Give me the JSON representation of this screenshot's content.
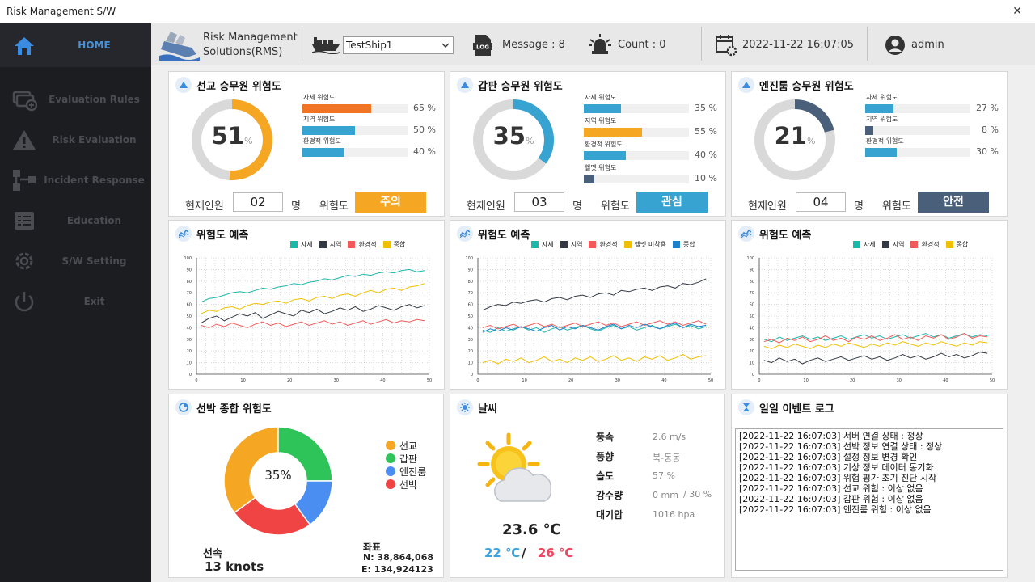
{
  "window": {
    "title": "Risk Management S/W",
    "close": "✕"
  },
  "sidebar": {
    "items": [
      {
        "label": "HOME",
        "icon": "home-icon"
      },
      {
        "label": "Evaluation Rules",
        "icon": "rules-icon"
      },
      {
        "label": "Risk Evaluation",
        "icon": "warning-icon"
      },
      {
        "label": "Incident Response",
        "icon": "network-icon"
      },
      {
        "label": "Education",
        "icon": "list-icon"
      },
      {
        "label": "S/W Setting",
        "icon": "gear-icon"
      },
      {
        "label": "Exit",
        "icon": "power-icon"
      }
    ]
  },
  "header": {
    "app_name_1": "Risk Management",
    "app_name_2": "Solutions(RMS)",
    "ship_select": "TestShip1",
    "message": "Message : 8",
    "count": "Count : 0",
    "datetime": "2022-11-22 16:07:05",
    "user": "admin"
  },
  "crew": [
    {
      "title": "선교 승무원 위험도",
      "value": 51,
      "unit": "%",
      "color": "#f5a623",
      "bars": [
        {
          "label": "자세 위험도",
          "pct": 65,
          "text": "65 %",
          "color": "#f07424"
        },
        {
          "label": "지역 위험도",
          "pct": 50,
          "text": "50 %",
          "color": "#36a3d0"
        },
        {
          "label": "환경적 위험도",
          "pct": 40,
          "text": "40 %",
          "color": "#36a3d0"
        }
      ],
      "count_label": "현재인원",
      "count": "02",
      "count_unit": "명",
      "risk_label": "위험도",
      "risk": "주의",
      "risk_color": "#f5a623"
    },
    {
      "title": "갑판 승무원 위험도",
      "value": 35,
      "unit": "%",
      "color": "#36a3d0",
      "bars": [
        {
          "label": "자세 위험도",
          "pct": 35,
          "text": "35 %",
          "color": "#36a3d0"
        },
        {
          "label": "지역 위험도",
          "pct": 55,
          "text": "55 %",
          "color": "#f5a623"
        },
        {
          "label": "환경적 위험도",
          "pct": 40,
          "text": "40 %",
          "color": "#36a3d0"
        },
        {
          "label": "헬멧 위험도",
          "pct": 10,
          "text": "10 %",
          "color": "#4a5f7a"
        }
      ],
      "count_label": "현재인원",
      "count": "03",
      "count_unit": "명",
      "risk_label": "위험도",
      "risk": "관심",
      "risk_color": "#36a3d0"
    },
    {
      "title": "엔진룸 승무원 위험도",
      "value": 21,
      "unit": "%",
      "color": "#4a5f7a",
      "bars": [
        {
          "label": "자세 위험도",
          "pct": 27,
          "text": "27 %",
          "color": "#36a3d0"
        },
        {
          "label": "지역 위험도",
          "pct": 8,
          "text": "8  %",
          "color": "#4a5f7a"
        },
        {
          "label": "환경적 위험도",
          "pct": 30,
          "text": "30 %",
          "color": "#36a3d0"
        }
      ],
      "count_label": "현재인원",
      "count": "04",
      "count_unit": "명",
      "risk_label": "위험도",
      "risk": "안전",
      "risk_color": "#4a5f7a"
    }
  ],
  "forecast_title": "위험도 예측",
  "chart_data": [
    {
      "type": "line",
      "title": "위험도 예측",
      "ylim": [
        0,
        100
      ],
      "xlim": [
        0,
        50
      ],
      "x_ticks": [
        0,
        10,
        20,
        30,
        40,
        50
      ],
      "y_ticks": [
        0,
        10,
        20,
        30,
        40,
        50,
        60,
        70,
        80,
        90,
        100
      ],
      "series": [
        {
          "name": "자세",
          "color": "#1bb7a8",
          "values": [
            62,
            65,
            66,
            68,
            70,
            71,
            70,
            72,
            74,
            73,
            75,
            76,
            78,
            77,
            79,
            80,
            82,
            81,
            83,
            85,
            84,
            86,
            85,
            87,
            88,
            87,
            89,
            90,
            88,
            89
          ]
        },
        {
          "name": "지역",
          "color": "#333a44",
          "values": [
            44,
            48,
            50,
            46,
            49,
            52,
            50,
            53,
            48,
            51,
            54,
            52,
            50,
            55,
            53,
            56,
            52,
            54,
            57,
            55,
            58,
            54,
            56,
            59,
            57,
            55,
            58,
            60,
            57,
            59
          ]
        },
        {
          "name": "환경적",
          "color": "#f05a5a",
          "values": [
            42,
            40,
            43,
            41,
            44,
            42,
            40,
            43,
            45,
            42,
            44,
            41,
            43,
            45,
            42,
            44,
            46,
            43,
            45,
            42,
            44,
            46,
            43,
            45,
            47,
            44,
            46,
            45,
            47,
            46
          ]
        },
        {
          "name": "종합",
          "color": "#f0c000",
          "values": [
            52,
            55,
            54,
            57,
            58,
            56,
            59,
            61,
            60,
            62,
            63,
            61,
            64,
            65,
            63,
            66,
            67,
            65,
            68,
            69,
            67,
            70,
            72,
            70,
            73,
            74,
            72,
            75,
            76,
            78
          ]
        }
      ]
    },
    {
      "type": "line",
      "title": "위험도 예측",
      "ylim": [
        0,
        100
      ],
      "xlim": [
        0,
        50
      ],
      "x_ticks": [
        0,
        10,
        20,
        30,
        40,
        50
      ],
      "y_ticks": [
        0,
        10,
        20,
        30,
        40,
        50,
        60,
        70,
        80,
        90,
        100
      ],
      "series": [
        {
          "name": "자세",
          "color": "#1bb7a8",
          "values": [
            38,
            36,
            40,
            37,
            39,
            41,
            38,
            40,
            36,
            39,
            41,
            38,
            40,
            42,
            39,
            37,
            40,
            42,
            39,
            41,
            38,
            40,
            42,
            39,
            41,
            43,
            40,
            42,
            39,
            41
          ]
        },
        {
          "name": "지역",
          "color": "#333a44",
          "values": [
            55,
            58,
            60,
            59,
            62,
            61,
            63,
            64,
            62,
            65,
            66,
            64,
            67,
            68,
            66,
            69,
            70,
            68,
            72,
            71,
            73,
            74,
            72,
            75,
            76,
            74,
            78,
            77,
            79,
            82
          ]
        },
        {
          "name": "환경적",
          "color": "#f05a5a",
          "values": [
            40,
            42,
            39,
            41,
            43,
            40,
            42,
            44,
            41,
            43,
            40,
            42,
            44,
            41,
            43,
            45,
            42,
            44,
            41,
            43,
            45,
            42,
            44,
            46,
            43,
            45,
            42,
            44,
            46,
            43
          ]
        },
        {
          "name": "헬멧 미착용",
          "color": "#f0c000",
          "values": [
            10,
            12,
            9,
            13,
            11,
            14,
            10,
            12,
            15,
            11,
            13,
            10,
            14,
            12,
            15,
            11,
            13,
            16,
            12,
            14,
            11,
            15,
            13,
            16,
            12,
            14,
            17,
            13,
            15,
            16
          ]
        },
        {
          "name": "종합",
          "color": "#1f7fc8",
          "values": [
            36,
            39,
            37,
            40,
            38,
            41,
            39,
            37,
            40,
            42,
            38,
            41,
            39,
            42,
            40,
            38,
            41,
            43,
            39,
            42,
            40,
            43,
            41,
            39,
            42,
            44,
            40,
            43,
            41,
            42
          ]
        }
      ]
    },
    {
      "type": "line",
      "title": "위험도 예측",
      "ylim": [
        0,
        100
      ],
      "xlim": [
        0,
        50
      ],
      "x_ticks": [
        0,
        10,
        20,
        30,
        40,
        50
      ],
      "y_ticks": [
        0,
        10,
        20,
        30,
        40,
        50,
        60,
        70,
        80,
        90,
        100
      ],
      "series": [
        {
          "name": "자세",
          "color": "#1bb7a8",
          "values": [
            30,
            28,
            32,
            29,
            31,
            33,
            30,
            32,
            29,
            31,
            33,
            30,
            32,
            34,
            31,
            33,
            30,
            32,
            34,
            31,
            33,
            35,
            32,
            34,
            31,
            33,
            35,
            32,
            34,
            33
          ]
        },
        {
          "name": "지역",
          "color": "#333a44",
          "values": [
            12,
            10,
            14,
            11,
            13,
            9,
            12,
            14,
            11,
            13,
            15,
            12,
            14,
            16,
            13,
            15,
            12,
            14,
            17,
            14,
            16,
            13,
            15,
            18,
            15,
            17,
            14,
            16,
            19,
            18
          ]
        },
        {
          "name": "환경적",
          "color": "#f05a5a",
          "values": [
            28,
            30,
            27,
            31,
            29,
            32,
            28,
            30,
            33,
            29,
            31,
            28,
            32,
            30,
            33,
            29,
            31,
            34,
            30,
            32,
            29,
            33,
            31,
            34,
            30,
            32,
            35,
            31,
            33,
            32
          ]
        },
        {
          "name": "종합",
          "color": "#f0c000",
          "values": [
            24,
            22,
            25,
            23,
            26,
            24,
            22,
            25,
            23,
            26,
            24,
            27,
            25,
            23,
            26,
            24,
            27,
            25,
            28,
            26,
            24,
            27,
            25,
            28,
            26,
            24,
            27,
            25,
            28,
            27
          ]
        }
      ]
    }
  ],
  "ship_risk": {
    "title": "선박 종합 위험도",
    "center": "35%",
    "legend": [
      {
        "name": "선교",
        "color": "#f5a623"
      },
      {
        "name": "갑판",
        "color": "#2ec45a"
      },
      {
        "name": "엔진룸",
        "color": "#4a8ef2"
      },
      {
        "name": "선박",
        "color": "#f04343"
      }
    ],
    "pie": [
      {
        "name": "선교",
        "color": "#f5a623",
        "value": 35
      },
      {
        "name": "갑판",
        "color": "#2ec45a",
        "value": 25
      },
      {
        "name": "엔진룸",
        "color": "#4a8ef2",
        "value": 15
      },
      {
        "name": "선박",
        "color": "#f04343",
        "value": 25
      }
    ],
    "speed_label": "선속",
    "speed": "13 knots",
    "coord_label": "좌표",
    "coord_n": "N: 38,864,068",
    "coord_e": "E: 134,924123"
  },
  "weather": {
    "title": "날씨",
    "temp": "23.6 ℃",
    "low": "22 ℃",
    "sep": "/",
    "high": "26 ℃",
    "rows": [
      {
        "label": "풍속",
        "value": "2.6 m/s"
      },
      {
        "label": "풍향",
        "value": "북-동동"
      },
      {
        "label": "습도",
        "value": "57 %"
      },
      {
        "label": "강수량",
        "value": "0 mm",
        "extra": "/  30 %"
      },
      {
        "label": "대기압",
        "value": "1016 hpa"
      }
    ]
  },
  "events": {
    "title": "일일 이벤트 로그",
    "lines": [
      "[2022-11-22 16:07:03] 서버 연결 상태 : 정상",
      "[2022-11-22 16:07:03] 선박 정보 연결 상태 : 정상",
      "[2022-11-22 16:07:03] 설정 정보 변경 확인",
      "[2022-11-22 16:07:03] 기상 정보 데이터 동기화",
      "[2022-11-22 16:07:03] 위험 평가 초기 진단 시작",
      "[2022-11-22 16:07:03] 선교 위험 : 이상 없음",
      "[2022-11-22 16:07:03] 갑판 위험 : 이상 없음",
      "[2022-11-22 16:07:03] 엔진룸 위험 : 이상 없음"
    ]
  }
}
